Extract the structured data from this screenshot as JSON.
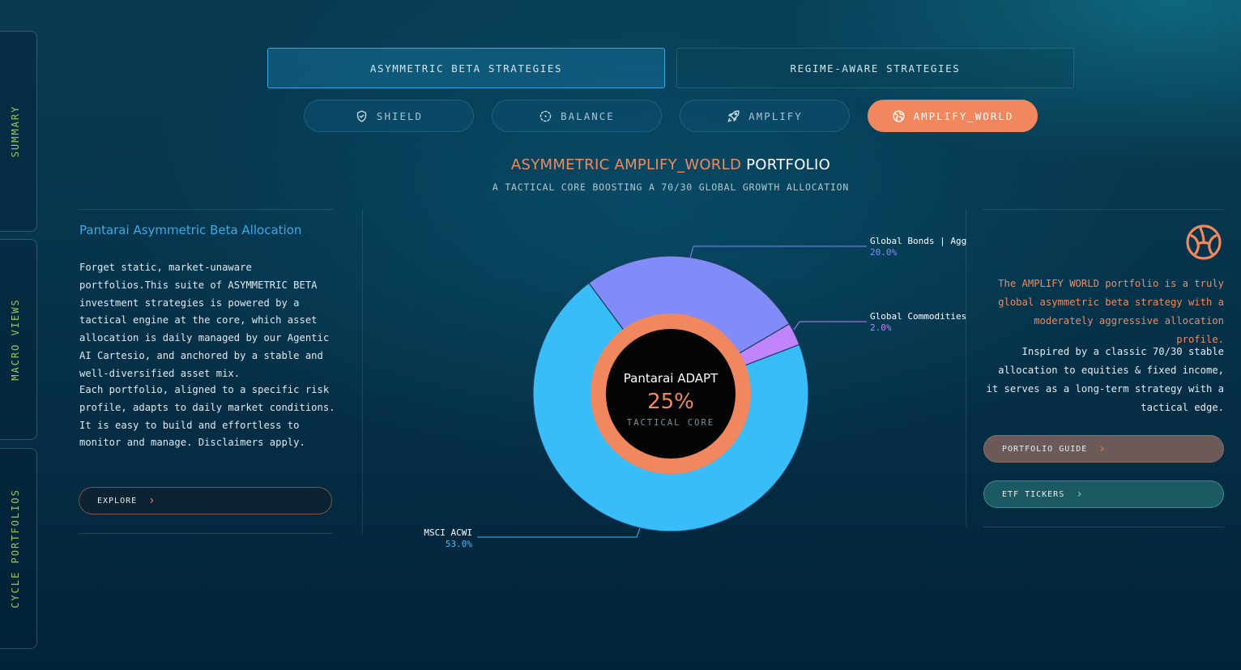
{
  "sidebar": {
    "tabs": [
      {
        "label": "SUMMARY"
      },
      {
        "label": "MACRO VIEWS"
      },
      {
        "label": "CYCLE PORTFOLIOS"
      }
    ]
  },
  "strategy_tabs": [
    {
      "label": "ASYMMETRIC BETA STRATEGIES",
      "active": true
    },
    {
      "label": "REGIME-AWARE STRATEGIES",
      "active": false
    }
  ],
  "portfolio_pills": [
    {
      "label": "SHIELD",
      "icon": "shield-check-icon",
      "active": false
    },
    {
      "label": "BALANCE",
      "icon": "dashed-circle-icon",
      "active": false
    },
    {
      "label": "AMPLIFY",
      "icon": "rocket-icon",
      "active": false
    },
    {
      "label": "AMPLIFY_WORLD",
      "icon": "globe-icon",
      "active": true
    }
  ],
  "heading": {
    "prefix": "ASYMMETRIC AMPLIFY_WORLD",
    "suffix": "PORTFOLIO",
    "subtitle": "A TACTICAL CORE BOOSTING A 70/30 GLOBAL GROWTH ALLOCATION"
  },
  "left_panel": {
    "heading": "Pantarai Asymmetric Beta Allocation",
    "paragraph1": "Forget static, market-unaware portfolios.This suite of ASYMMETRIC BETA investment strategies is powered by a tactical engine at the core, which asset allocation is daily managed by our Agentic AI Cartesio, and anchored by a stable and well-diversified asset mix.",
    "paragraph2": "Each portfolio, aligned to a specific risk profile, adapts to daily market conditions. It is easy to build and effortless to monitor and manage. Disclaimers apply.",
    "explore_label": "EXPLORE"
  },
  "right_panel": {
    "logo_icon": "pantarai-logo-icon",
    "highlight": "The AMPLIFY WORLD portfolio is a truly global asymmetric beta strategy with a moderately aggressive allocation profile.",
    "body": "Inspired by a classic 70/30 stable allocation to equities & fixed income, it serves as a long-term strategy with a tactical edge.",
    "guide_label": "PORTFOLIO GUIDE",
    "tickers_label": "ETF TICKERS"
  },
  "colors": {
    "accent_orange": "#f0875e",
    "accent_blue": "#3aaae6",
    "msci": "#38bdf8",
    "bonds": "#818cf8",
    "commodities": "#c084fc"
  },
  "chart_data": {
    "type": "pie",
    "style": "donut",
    "slices": [
      {
        "name": "Global Bonds | Agg",
        "value": 20.0,
        "label": "20.0%",
        "color": "#818cf8"
      },
      {
        "name": "Global Commodities",
        "value": 2.0,
        "label": "2.0%",
        "color": "#c084fc"
      },
      {
        "name": "MSCI ACWI",
        "value": 53.0,
        "label": "53.0%",
        "color": "#38bdf8"
      }
    ],
    "center": {
      "name": "Pantarai ADAPT",
      "value": 25,
      "label": "25%",
      "sublabel": "TACTICAL CORE",
      "color": "#f0875e"
    }
  }
}
